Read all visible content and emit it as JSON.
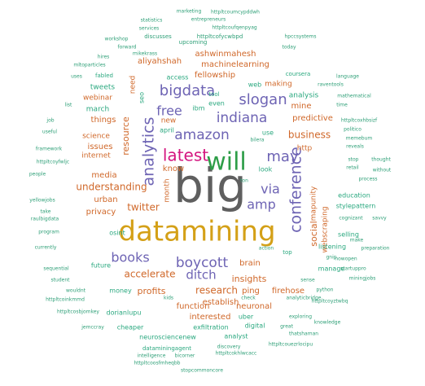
{
  "title": "",
  "colors": {
    "gray": "#5f5f5f",
    "gold": "#d4a017",
    "purple": "#6e64b4",
    "green": "#2e9e48",
    "magenta": "#d4157f",
    "orange": "#d0682a",
    "teal": "#2aa87f",
    "tiny": "#2fa078"
  },
  "words": [
    {
      "text": "big",
      "size": 58,
      "color": "gray"
    },
    {
      "text": "datamining",
      "size": 34,
      "color": "gold"
    },
    {
      "text": "will",
      "size": 30,
      "color": "green"
    },
    {
      "text": "latest",
      "size": 20,
      "color": "magenta"
    },
    {
      "text": "analytics",
      "size": 19,
      "color": "purple",
      "vertical": true
    },
    {
      "text": "conference",
      "size": 19,
      "color": "purple",
      "vertical": true
    },
    {
      "text": "bigdata",
      "size": 18,
      "color": "purple"
    },
    {
      "text": "slogan",
      "size": 18,
      "color": "purple"
    },
    {
      "text": "may",
      "size": 18,
      "color": "purple"
    },
    {
      "text": "indiana",
      "size": 17,
      "color": "purple"
    },
    {
      "text": "amazon",
      "size": 17,
      "color": "purple"
    },
    {
      "text": "boycott",
      "size": 17,
      "color": "purple"
    },
    {
      "text": "books",
      "size": 16,
      "color": "purple"
    },
    {
      "text": "free",
      "size": 16,
      "color": "purple"
    },
    {
      "text": "via",
      "size": 16,
      "color": "purple"
    },
    {
      "text": "amp",
      "size": 16,
      "color": "purple"
    },
    {
      "text": "ditch",
      "size": 15,
      "color": "purple"
    },
    {
      "text": "business",
      "size": 12,
      "color": "orange"
    },
    {
      "text": "understanding",
      "size": 12,
      "color": "orange"
    },
    {
      "text": "twitter",
      "size": 12,
      "color": "orange"
    },
    {
      "text": "accelerate",
      "size": 12,
      "color": "orange"
    },
    {
      "text": "research",
      "size": 12,
      "color": "orange"
    },
    {
      "text": "insights",
      "size": 11,
      "color": "orange"
    },
    {
      "text": "profits",
      "size": 11,
      "color": "orange"
    },
    {
      "text": "resource",
      "size": 11,
      "color": "orange",
      "vertical": true
    },
    {
      "text": "social",
      "size": 11,
      "color": "orange",
      "vertical": true
    },
    {
      "text": "predictive",
      "size": 10,
      "color": "orange"
    },
    {
      "text": "mine",
      "size": 10,
      "color": "orange"
    },
    {
      "text": "machinelearning",
      "size": 10,
      "color": "orange"
    },
    {
      "text": "ashwinmahesh",
      "size": 10,
      "color": "orange"
    },
    {
      "text": "fellowship",
      "size": 10,
      "color": "orange"
    },
    {
      "text": "aliyahshah",
      "size": 10,
      "color": "orange"
    },
    {
      "text": "things",
      "size": 10,
      "color": "orange"
    },
    {
      "text": "media",
      "size": 10,
      "color": "orange"
    },
    {
      "text": "issues",
      "size": 10,
      "color": "orange"
    },
    {
      "text": "privacy",
      "size": 10,
      "color": "orange"
    },
    {
      "text": "urban",
      "size": 10,
      "color": "orange"
    },
    {
      "text": "brain",
      "size": 10,
      "color": "orange"
    },
    {
      "text": "ping",
      "size": 10,
      "color": "orange"
    },
    {
      "text": "firehose",
      "size": 10,
      "color": "orange"
    },
    {
      "text": "neuronal",
      "size": 10,
      "color": "orange"
    },
    {
      "text": "establish",
      "size": 10,
      "color": "orange"
    },
    {
      "text": "function",
      "size": 10,
      "color": "orange"
    },
    {
      "text": "interested",
      "size": 10,
      "color": "orange"
    },
    {
      "text": "know",
      "size": 10,
      "color": "orange"
    },
    {
      "text": "month",
      "size": 9,
      "color": "orange",
      "vertical": true
    },
    {
      "text": "mapunity",
      "size": 9,
      "color": "orange",
      "vertical": true
    },
    {
      "text": "webscraping",
      "size": 9,
      "color": "orange",
      "vertical": true
    },
    {
      "text": "need",
      "size": 9,
      "color": "orange",
      "vertical": true
    },
    {
      "text": "making",
      "size": 9,
      "color": "orange"
    },
    {
      "text": "science",
      "size": 9,
      "color": "orange"
    },
    {
      "text": "internet",
      "size": 9,
      "color": "orange"
    },
    {
      "text": "new",
      "size": 9,
      "color": "orange"
    },
    {
      "text": "http",
      "size": 9,
      "color": "orange"
    },
    {
      "text": "webinar",
      "size": 9,
      "color": "orange"
    },
    {
      "text": "analysis",
      "size": 9,
      "color": "teal"
    },
    {
      "text": "tweets",
      "size": 9,
      "color": "teal"
    },
    {
      "text": "march",
      "size": 9,
      "color": "teal"
    },
    {
      "text": "access",
      "size": 8,
      "color": "teal"
    },
    {
      "text": "look",
      "size": 8,
      "color": "teal"
    },
    {
      "text": "use",
      "size": 8,
      "color": "teal"
    },
    {
      "text": "seo",
      "size": 8,
      "color": "teal",
      "vertical": true
    },
    {
      "text": "ibm",
      "size": 8,
      "color": "teal"
    },
    {
      "text": "web",
      "size": 8,
      "color": "teal"
    },
    {
      "text": "even",
      "size": 8,
      "color": "teal"
    },
    {
      "text": "april",
      "size": 8,
      "color": "teal"
    },
    {
      "text": "osint",
      "size": 8,
      "color": "teal"
    },
    {
      "text": "listening",
      "size": 8,
      "color": "teal"
    },
    {
      "text": "selling",
      "size": 8,
      "color": "teal"
    },
    {
      "text": "stylepattern",
      "size": 8,
      "color": "teal"
    },
    {
      "text": "education",
      "size": 8,
      "color": "teal"
    },
    {
      "text": "future",
      "size": 8,
      "color": "teal"
    },
    {
      "text": "money",
      "size": 8,
      "color": "teal"
    },
    {
      "text": "manage",
      "size": 8,
      "color": "teal"
    },
    {
      "text": "dorianlupu",
      "size": 8,
      "color": "teal"
    },
    {
      "text": "uber",
      "size": 8,
      "color": "teal"
    },
    {
      "text": "digital",
      "size": 8,
      "color": "teal"
    },
    {
      "text": "exfiltration",
      "size": 8,
      "color": "teal"
    },
    {
      "text": "analyst",
      "size": 8,
      "color": "teal"
    },
    {
      "text": "neurosciencenew",
      "size": 8,
      "color": "teal"
    },
    {
      "text": "cheaper",
      "size": 8,
      "color": "teal"
    },
    {
      "text": "dataminingagent",
      "size": 7,
      "color": "teal"
    },
    {
      "text": "coursera",
      "size": 7,
      "color": "teal"
    },
    {
      "text": "tool",
      "size": 7,
      "color": "teal"
    },
    {
      "text": "top",
      "size": 7,
      "color": "teal"
    },
    {
      "text": "fabled",
      "size": 7,
      "color": "teal"
    },
    {
      "text": "discusses",
      "size": 7,
      "color": "tiny"
    },
    {
      "text": "upcoming",
      "size": 7,
      "color": "tiny"
    },
    {
      "text": "httpltcofycwbpd",
      "size": 7,
      "color": "tiny"
    },
    {
      "text": "marketing",
      "size": 6,
      "color": "tiny"
    },
    {
      "text": "httpltcoumcypddwh",
      "size": 6,
      "color": "tiny"
    },
    {
      "text": "statistics",
      "size": 6,
      "color": "tiny"
    },
    {
      "text": "entrepreneurs",
      "size": 6,
      "color": "tiny"
    },
    {
      "text": "services",
      "size": 6,
      "color": "tiny"
    },
    {
      "text": "httpltcoufqenpyag",
      "size": 6,
      "color": "tiny"
    },
    {
      "text": "workshop",
      "size": 6,
      "color": "tiny"
    },
    {
      "text": "forward",
      "size": 6,
      "color": "tiny"
    },
    {
      "text": "hires",
      "size": 6,
      "color": "tiny"
    },
    {
      "text": "hpccsystems",
      "size": 6,
      "color": "tiny"
    },
    {
      "text": "mikekrass",
      "size": 6,
      "color": "tiny"
    },
    {
      "text": "mltoparticles",
      "size": 6,
      "color": "tiny"
    },
    {
      "text": "today",
      "size": 6,
      "color": "tiny"
    },
    {
      "text": "language",
      "size": 6,
      "color": "tiny"
    },
    {
      "text": "raventools",
      "size": 6,
      "color": "tiny"
    },
    {
      "text": "mathematical",
      "size": 6,
      "color": "tiny"
    },
    {
      "text": "time",
      "size": 6,
      "color": "tiny"
    },
    {
      "text": "httpltcoxhbsizf",
      "size": 6,
      "color": "tiny"
    },
    {
      "text": "politico",
      "size": 6,
      "color": "tiny"
    },
    {
      "text": "memebum",
      "size": 6,
      "color": "tiny"
    },
    {
      "text": "reveals",
      "size": 6,
      "color": "tiny"
    },
    {
      "text": "stop",
      "size": 6,
      "color": "tiny"
    },
    {
      "text": "thought",
      "size": 6,
      "color": "tiny"
    },
    {
      "text": "retail",
      "size": 6,
      "color": "tiny"
    },
    {
      "text": "without",
      "size": 6,
      "color": "tiny"
    },
    {
      "text": "process",
      "size": 6,
      "color": "tiny"
    },
    {
      "text": "cognizant",
      "size": 6,
      "color": "tiny"
    },
    {
      "text": "savvy",
      "size": 6,
      "color": "tiny"
    },
    {
      "text": "make",
      "size": 6,
      "color": "tiny"
    },
    {
      "text": "preparation",
      "size": 6,
      "color": "tiny"
    },
    {
      "text": "nowopen",
      "size": 6,
      "color": "tiny"
    },
    {
      "text": "startuppro",
      "size": 6,
      "color": "tiny"
    },
    {
      "text": "miningjobs",
      "size": 6,
      "color": "tiny"
    },
    {
      "text": "python",
      "size": 6,
      "color": "tiny"
    },
    {
      "text": "httpltcoyztwbq",
      "size": 6,
      "color": "tiny"
    },
    {
      "text": "analyticbridge",
      "size": 6,
      "color": "tiny"
    },
    {
      "text": "exploring",
      "size": 6,
      "color": "tiny"
    },
    {
      "text": "knowledge",
      "size": 6,
      "color": "tiny"
    },
    {
      "text": "great",
      "size": 6,
      "color": "tiny"
    },
    {
      "text": "thatshaman",
      "size": 6,
      "color": "tiny"
    },
    {
      "text": "httpltcouezrlocipu",
      "size": 6,
      "color": "tiny"
    },
    {
      "text": "httpltcokhlwcacc",
      "size": 6,
      "color": "tiny"
    },
    {
      "text": "discovery",
      "size": 6,
      "color": "tiny"
    },
    {
      "text": "intelligence",
      "size": 6,
      "color": "tiny"
    },
    {
      "text": "bicorner",
      "size": 6,
      "color": "tiny"
    },
    {
      "text": "httpltcoosfmheqbb",
      "size": 6,
      "color": "tiny"
    },
    {
      "text": "stopcommoncore",
      "size": 6,
      "color": "tiny"
    },
    {
      "text": "jemccray",
      "size": 6,
      "color": "tiny"
    },
    {
      "text": "httpltcosbjomkey",
      "size": 6,
      "color": "tiny"
    },
    {
      "text": "httpltcoinkmmd",
      "size": 6,
      "color": "tiny"
    },
    {
      "text": "wouldnt",
      "size": 6,
      "color": "tiny"
    },
    {
      "text": "student",
      "size": 6,
      "color": "tiny"
    },
    {
      "text": "sequential",
      "size": 6,
      "color": "tiny"
    },
    {
      "text": "currently",
      "size": 6,
      "color": "tiny"
    },
    {
      "text": "program",
      "size": 6,
      "color": "tiny"
    },
    {
      "text": "raulbigdata",
      "size": 6,
      "color": "tiny"
    },
    {
      "text": "take",
      "size": 6,
      "color": "tiny"
    },
    {
      "text": "yellowjobs",
      "size": 6,
      "color": "tiny"
    },
    {
      "text": "people",
      "size": 6,
      "color": "tiny"
    },
    {
      "text": "httpltcoyfwljc",
      "size": 6,
      "color": "tiny"
    },
    {
      "text": "framework",
      "size": 6,
      "color": "tiny"
    },
    {
      "text": "useful",
      "size": 6,
      "color": "tiny"
    },
    {
      "text": "job",
      "size": 6,
      "color": "tiny"
    },
    {
      "text": "list",
      "size": 6,
      "color": "tiny"
    },
    {
      "text": "uses",
      "size": 6,
      "color": "tiny"
    },
    {
      "text": "gnip",
      "size": 6,
      "color": "tiny"
    },
    {
      "text": "action",
      "size": 6,
      "color": "tiny"
    },
    {
      "text": "kids",
      "size": 6,
      "color": "tiny"
    },
    {
      "text": "check",
      "size": 6,
      "color": "tiny"
    },
    {
      "text": "sense",
      "size": 6,
      "color": "tiny"
    },
    {
      "text": "bilera",
      "size": 6,
      "color": "tiny"
    },
    {
      "text": "ton",
      "size": 6,
      "color": "tiny"
    }
  ]
}
